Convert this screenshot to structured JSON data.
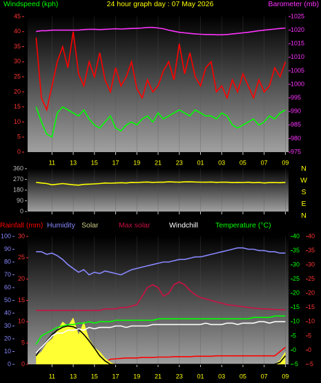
{
  "chart_data": [
    {
      "type": "line",
      "title": "24 hour graph day : 07 May 2026",
      "x": [
        9.5,
        10,
        10.5,
        11,
        11.5,
        12,
        12.5,
        13,
        13.5,
        14,
        14.5,
        15,
        15.5,
        16,
        16.5,
        17,
        17.5,
        18,
        18.5,
        19,
        19.5,
        20,
        20.5,
        21,
        21.5,
        22,
        22.5,
        23,
        23.5,
        24,
        24.5,
        25,
        25.5,
        26,
        26.5,
        27,
        27.5,
        28,
        28.5,
        29,
        29.5,
        30,
        30.5,
        31,
        31.5,
        32,
        32.5,
        33
      ],
      "xlim": [
        8.7,
        33.3
      ],
      "xticks": [
        11,
        13,
        15,
        17,
        19,
        21,
        23,
        {
          "value": 25,
          "label": "01"
        },
        {
          "value": 27,
          "label": "03"
        },
        {
          "value": 29,
          "label": "05"
        },
        {
          "value": 31,
          "label": "07"
        },
        {
          "value": 33,
          "label": "09"
        }
      ],
      "ylim": [
        0,
        45
      ],
      "yticks": [
        0,
        5,
        10,
        15,
        20,
        25,
        30,
        35,
        40,
        45
      ],
      "y2lim": [
        975,
        1025
      ],
      "y2ticks": [
        975,
        980,
        985,
        990,
        995,
        1000,
        1005,
        1010,
        1015,
        1020,
        1025
      ],
      "series": [
        {
          "color": "#ff0000",
          "values": [
            38,
            18,
            14,
            22,
            30,
            35,
            28,
            40,
            26,
            22,
            30,
            25,
            33,
            24,
            20,
            28,
            22,
            25,
            30,
            21,
            18,
            24,
            20,
            22,
            27,
            30,
            24,
            36,
            26,
            33,
            25,
            22,
            28,
            30,
            20,
            22,
            18,
            24,
            20,
            26,
            22,
            18,
            24,
            20,
            22,
            28,
            25,
            30
          ]
        },
        {
          "name": "Windspeed (kph)",
          "color": "#00ff00",
          "values": [
            15,
            10,
            6,
            5,
            13,
            15,
            14,
            13,
            12,
            14,
            11,
            9,
            8,
            10,
            12,
            8,
            7,
            9,
            10,
            9,
            11,
            12,
            10,
            13,
            11,
            12,
            13,
            14,
            13,
            12,
            14,
            13,
            12,
            12,
            11,
            13,
            12,
            9,
            8,
            9,
            10,
            11,
            9,
            10,
            12,
            11,
            13,
            14
          ]
        },
        {
          "name": "Barometer (mb)",
          "color": "#ff33ff",
          "axis": "y2",
          "values": [
            1019.5,
            1019.8,
            1019.8,
            1020,
            1020,
            1020,
            1020,
            1020,
            1020,
            1020.2,
            1020.3,
            1020.3,
            1020.2,
            1020.3,
            1020.4,
            1020.5,
            1020.4,
            1020.5,
            1020.6,
            1020.7,
            1020.8,
            1021,
            1021,
            1020.8,
            1020.5,
            1020,
            1019.6,
            1019.2,
            1019,
            1018.8,
            1018.6,
            1018.5,
            1018.4,
            1018.4,
            1018.3,
            1018.3,
            1018.4,
            1018.6,
            1018.8,
            1019,
            1019.2,
            1019.5,
            1019.8,
            1020,
            1020.2,
            1020.4,
            1020.6,
            1020.8
          ]
        }
      ]
    },
    {
      "type": "line",
      "x": [
        9.5,
        10,
        10.5,
        11,
        11.5,
        12,
        12.5,
        13,
        13.5,
        14,
        14.5,
        15,
        15.5,
        16,
        16.5,
        17,
        17.5,
        18,
        18.5,
        19,
        19.5,
        20,
        20.5,
        21,
        21.5,
        22,
        22.5,
        23,
        23.5,
        24,
        24.5,
        25,
        25.5,
        26,
        26.5,
        27,
        27.5,
        28,
        28.5,
        29,
        29.5,
        30,
        30.5,
        31,
        31.5,
        32,
        32.5,
        33
      ],
      "xlim": [
        8.7,
        33.3
      ],
      "xticks": [
        11,
        13,
        15,
        17,
        19,
        21,
        23,
        25,
        27,
        29,
        31,
        33
      ],
      "ylim": [
        0,
        360
      ],
      "yticks": [
        0,
        90,
        180,
        270,
        360
      ],
      "compass": [
        "N",
        "W",
        "S",
        "E",
        "N"
      ],
      "series": [
        {
          "color": "#ffff00",
          "values": [
            245,
            240,
            235,
            225,
            230,
            235,
            230,
            225,
            222,
            228,
            230,
            232,
            235,
            240,
            238,
            240,
            242,
            240,
            245,
            244,
            246,
            248,
            245,
            247,
            246,
            250,
            248,
            246,
            249,
            250,
            248,
            247,
            246,
            248,
            245,
            247,
            246,
            243,
            245,
            244,
            246,
            242,
            245,
            240,
            243,
            244,
            242,
            245
          ]
        }
      ]
    },
    {
      "type": "line",
      "x": [
        9.5,
        10,
        10.5,
        11,
        11.5,
        12,
        12.5,
        13,
        13.5,
        14,
        14.5,
        15,
        15.5,
        16,
        16.5,
        17,
        17.5,
        18,
        18.5,
        19,
        19.5,
        20,
        20.5,
        21,
        21.5,
        22,
        22.5,
        23,
        23.5,
        24,
        24.5,
        25,
        25.5,
        26,
        26.5,
        27,
        27.5,
        28,
        28.5,
        29,
        29.5,
        30,
        30.5,
        31,
        31.5,
        32,
        32.5,
        33
      ],
      "xlim": [
        8.7,
        33.3
      ],
      "xticks": [
        11,
        13,
        15,
        17,
        19,
        21,
        23,
        {
          "value": 25,
          "label": "01"
        },
        {
          "value": 27,
          "label": "03"
        },
        {
          "value": 29,
          "label": "05"
        },
        {
          "value": 31,
          "label": "07"
        },
        {
          "value": 33,
          "label": "09"
        }
      ],
      "ylim": [
        0,
        30
      ],
      "yticks": [
        0,
        5,
        10,
        15,
        20,
        25,
        30
      ],
      "y3lim": [
        0,
        100
      ],
      "y3ticks": [
        0,
        10,
        20,
        30,
        40,
        50,
        60,
        70,
        80,
        90,
        100
      ],
      "y2lim": [
        -5,
        40
      ],
      "y2ticks": [
        -5,
        0,
        5,
        10,
        15,
        20,
        25,
        30,
        35,
        40
      ],
      "series": [
        {
          "name": "Rainfall (mm)",
          "color": "#ff0000",
          "values": [
            0.5,
            0.5,
            0.5,
            0.5,
            0.5,
            0.5,
            0.5,
            0.5,
            0.5,
            0.5,
            0.5,
            0.5,
            0.5,
            0.5,
            1.2,
            1.3,
            1.4,
            1.5,
            1.5,
            1.5,
            1.6,
            1.6,
            1.6,
            1.7,
            1.7,
            1.7,
            1.8,
            1.8,
            1.8,
            1.8,
            1.9,
            1.9,
            1.9,
            1.9,
            2,
            2,
            2,
            2,
            2,
            2,
            2,
            2,
            2,
            2,
            2,
            2,
            3,
            4
          ]
        },
        {
          "name": "Humidity",
          "color": "#8888ff",
          "axis": "y3",
          "values": [
            88,
            88,
            86,
            87,
            85,
            82,
            78,
            75,
            72,
            74,
            70,
            72,
            71,
            73,
            72,
            71,
            70,
            72,
            74,
            75,
            76,
            77,
            78,
            79,
            80,
            80,
            81,
            82,
            82,
            83,
            84,
            84,
            85,
            86,
            87,
            88,
            89,
            90,
            91,
            91,
            90,
            90,
            89,
            89,
            88,
            88,
            87,
            87
          ]
        },
        {
          "name": "Solar",
          "color": "#ffff33",
          "fill": true,
          "values": [
            2,
            3,
            5,
            6,
            8,
            10,
            9,
            11,
            7,
            10,
            6,
            4,
            3,
            1.5,
            0.5,
            0,
            0,
            0,
            0,
            0,
            0,
            0,
            0,
            0,
            0,
            0,
            0,
            0,
            0,
            0,
            0,
            0,
            0,
            0,
            0,
            0,
            0,
            0,
            0,
            0,
            0,
            0,
            0,
            0,
            0,
            0,
            1,
            3
          ]
        },
        {
          "color": "#000000",
          "values": [
            2,
            4,
            5.5,
            7,
            8,
            8.7,
            9,
            8.8,
            8.2,
            7,
            5.5,
            3.8,
            2,
            0.8,
            0,
            0,
            0,
            0,
            0,
            0,
            0,
            0,
            0,
            0,
            0,
            0,
            0,
            0,
            0,
            0,
            0,
            0,
            0,
            0,
            0,
            0,
            0,
            0,
            0,
            0,
            0,
            0,
            0,
            0,
            0,
            0,
            0.5,
            2
          ]
        },
        {
          "name": "Max solar",
          "color": "#cc1144",
          "axis": "y2",
          "values": [
            14,
            14,
            14,
            14,
            14,
            14,
            14,
            14,
            14,
            14,
            14,
            14,
            14,
            14.5,
            14.5,
            14.5,
            15,
            15,
            15.5,
            16,
            19,
            22,
            23,
            22,
            19,
            20,
            23,
            24,
            23,
            21,
            19.5,
            18.5,
            18,
            17.5,
            17,
            16.5,
            16,
            15.8,
            15.5,
            15.3,
            15,
            14.8,
            14.6,
            14.5,
            14.4,
            14.3,
            14.2,
            14.2
          ]
        },
        {
          "name": "Windchill",
          "color": "#ffffff",
          "axis": "y2",
          "values": [
            -1,
            1,
            3,
            5,
            6,
            6,
            7,
            7,
            7.5,
            7,
            8,
            7.5,
            8,
            8,
            8,
            8.5,
            8.5,
            8,
            8.5,
            8.5,
            8.5,
            8.5,
            9,
            9,
            9,
            9,
            9,
            9,
            9,
            9,
            9,
            9,
            9.5,
            9,
            9,
            9,
            9.5,
            9.5,
            9,
            9.5,
            9.5,
            9.5,
            10,
            10,
            9.5,
            10,
            10,
            10
          ]
        },
        {
          "name": "Temperature (°C)",
          "color": "#00ff00",
          "axis": "y2",
          "values": [
            2,
            5,
            6,
            7,
            8,
            8.5,
            9,
            9,
            9.5,
            9.5,
            10,
            9.5,
            10,
            10,
            10,
            10.5,
            10.5,
            10.5,
            10.5,
            10.5,
            10.5,
            10.5,
            10.5,
            11,
            11,
            11,
            11,
            11,
            11,
            11,
            11,
            11,
            11,
            11,
            11,
            11,
            11,
            11,
            11,
            11,
            11,
            11.5,
            11.5,
            11.5,
            11.5,
            12,
            12,
            12
          ]
        }
      ]
    }
  ]
}
